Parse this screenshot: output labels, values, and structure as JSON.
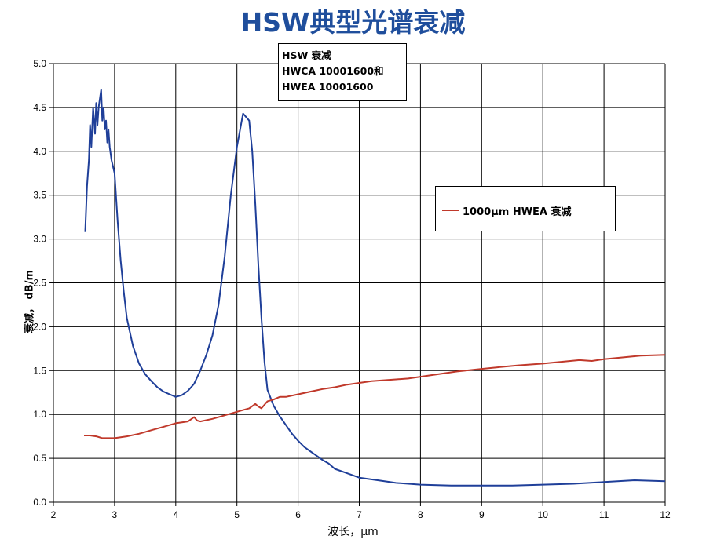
{
  "chart_data": {
    "type": "line",
    "title": "HSW典型光谱衰减",
    "xlabel": "波长，μm",
    "ylabel": "衰减，  dB/m",
    "xlim": [
      2,
      12
    ],
    "ylim": [
      0,
      5
    ],
    "xticks": [
      "2",
      "3",
      "4",
      "5",
      "6",
      "7",
      "8",
      "9",
      "10",
      "11",
      "12"
    ],
    "yticks": [
      "0.0",
      "0.5",
      "1.0",
      "1.5",
      "2.0",
      "2.5",
      "3.0",
      "3.5",
      "4.0",
      "4.5",
      "5.0"
    ],
    "grid": true,
    "annotation": [
      "HSW 衰减",
      "HWCA 10001600和",
      "HWEA 10001600"
    ],
    "legend_position": "right",
    "series": [
      {
        "name": "HSW 衰减",
        "color": "#1f3f99",
        "x": [
          2.52,
          2.55,
          2.58,
          2.6,
          2.62,
          2.65,
          2.68,
          2.7,
          2.72,
          2.74,
          2.76,
          2.78,
          2.8,
          2.82,
          2.84,
          2.86,
          2.88,
          2.9,
          2.92,
          2.95,
          3.0,
          3.05,
          3.1,
          3.15,
          3.2,
          3.3,
          3.4,
          3.5,
          3.6,
          3.7,
          3.8,
          3.9,
          4.0,
          4.1,
          4.2,
          4.3,
          4.4,
          4.5,
          4.6,
          4.7,
          4.8,
          4.9,
          5.0,
          5.1,
          5.2,
          5.25,
          5.3,
          5.35,
          5.4,
          5.45,
          5.5,
          5.6,
          5.7,
          5.8,
          5.9,
          6.0,
          6.1,
          6.2,
          6.3,
          6.4,
          6.5,
          6.6,
          6.8,
          7.0,
          7.3,
          7.6,
          8.0,
          8.5,
          9.0,
          9.5,
          10.0,
          10.5,
          11.0,
          11.5,
          12.0
        ],
        "y": [
          3.08,
          3.6,
          3.9,
          4.3,
          4.05,
          4.5,
          4.2,
          4.55,
          4.3,
          4.5,
          4.6,
          4.7,
          4.35,
          4.5,
          4.25,
          4.35,
          4.1,
          4.25,
          4.05,
          3.9,
          3.75,
          3.2,
          2.75,
          2.4,
          2.1,
          1.78,
          1.58,
          1.46,
          1.38,
          1.31,
          1.26,
          1.23,
          1.2,
          1.22,
          1.27,
          1.35,
          1.5,
          1.68,
          1.9,
          2.25,
          2.8,
          3.5,
          4.05,
          4.43,
          4.35,
          4.0,
          3.4,
          2.7,
          2.1,
          1.6,
          1.28,
          1.1,
          0.98,
          0.88,
          0.78,
          0.7,
          0.63,
          0.58,
          0.53,
          0.48,
          0.44,
          0.38,
          0.33,
          0.28,
          0.25,
          0.22,
          0.2,
          0.19,
          0.19,
          0.19,
          0.2,
          0.21,
          0.23,
          0.25,
          0.24
        ]
      },
      {
        "name": "1000μm HWEA 衰减",
        "color": "#c0392b",
        "x": [
          2.5,
          2.6,
          2.7,
          2.8,
          2.9,
          3.0,
          3.2,
          3.4,
          3.6,
          3.8,
          4.0,
          4.2,
          4.3,
          4.35,
          4.4,
          4.6,
          4.8,
          5.0,
          5.1,
          5.2,
          5.3,
          5.35,
          5.4,
          5.5,
          5.6,
          5.7,
          5.8,
          6.0,
          6.2,
          6.4,
          6.6,
          6.8,
          7.0,
          7.2,
          7.4,
          7.6,
          7.8,
          8.0,
          8.3,
          8.6,
          9.0,
          9.3,
          9.6,
          10.0,
          10.3,
          10.6,
          10.8,
          11.0,
          11.3,
          11.6,
          12.0
        ],
        "y": [
          0.76,
          0.76,
          0.75,
          0.73,
          0.73,
          0.73,
          0.75,
          0.78,
          0.82,
          0.86,
          0.9,
          0.92,
          0.97,
          0.93,
          0.92,
          0.95,
          0.99,
          1.03,
          1.05,
          1.07,
          1.12,
          1.09,
          1.07,
          1.15,
          1.17,
          1.2,
          1.2,
          1.23,
          1.26,
          1.29,
          1.31,
          1.34,
          1.36,
          1.38,
          1.39,
          1.4,
          1.41,
          1.43,
          1.46,
          1.49,
          1.52,
          1.54,
          1.56,
          1.58,
          1.6,
          1.62,
          1.61,
          1.63,
          1.65,
          1.67,
          1.68
        ]
      }
    ]
  }
}
